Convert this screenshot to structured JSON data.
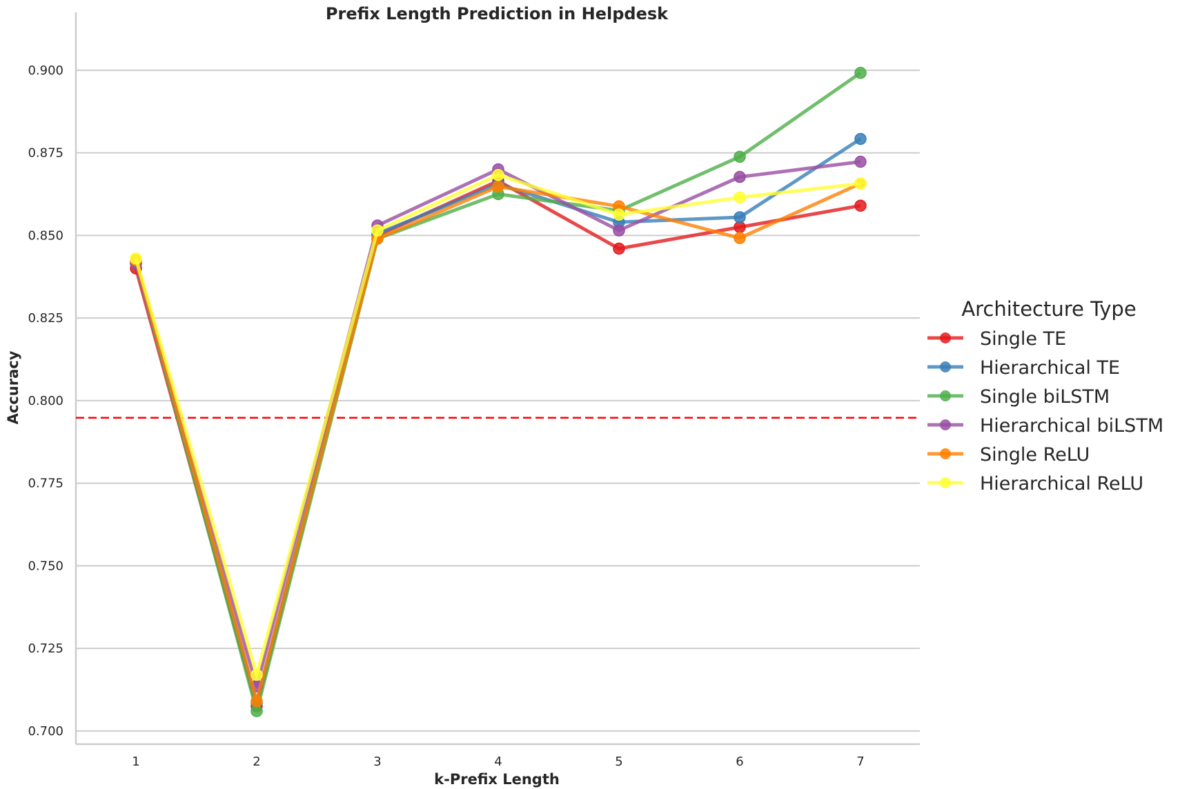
{
  "chart_data": {
    "type": "line",
    "title": "Prefix Length Prediction in Helpdesk",
    "xlabel": "k-Prefix Length",
    "ylabel": "Accuracy",
    "x": [
      1,
      2,
      3,
      4,
      5,
      6,
      7
    ],
    "x_tick_labels": [
      "1",
      "2",
      "3",
      "4",
      "5",
      "6",
      "7"
    ],
    "ylim": [
      0.696,
      0.9175
    ],
    "y_ticks": [
      0.7,
      0.725,
      0.75,
      0.775,
      0.8,
      0.825,
      0.85,
      0.875,
      0.9
    ],
    "y_tick_labels": [
      "0.700",
      "0.725",
      "0.750",
      "0.775",
      "0.800",
      "0.825",
      "0.850",
      "0.875",
      "0.900"
    ],
    "grid": "horizontal",
    "reference_line": {
      "y": 0.7948,
      "color": "#ff0000",
      "style": "dashed"
    },
    "legend": {
      "title": "Architecture Type",
      "placement": "right"
    },
    "series": [
      {
        "name": "Single TE",
        "color": "#e41a1c",
        "values": [
          0.84,
          0.7075,
          0.85,
          0.8665,
          0.846,
          0.8525,
          0.859
        ]
      },
      {
        "name": "Hierarchical TE",
        "color": "#377eb8",
        "values": [
          0.8415,
          0.7085,
          0.8505,
          0.8655,
          0.854,
          0.8555,
          0.8792
        ]
      },
      {
        "name": "Single biLSTM",
        "color": "#4daf4a",
        "values": [
          0.842,
          0.706,
          0.849,
          0.8625,
          0.8575,
          0.8738,
          0.8992
        ]
      },
      {
        "name": "Hierarchical biLSTM",
        "color": "#984ea3",
        "values": [
          0.8415,
          0.7135,
          0.853,
          0.87,
          0.8515,
          0.8677,
          0.8723
        ]
      },
      {
        "name": "Single ReLU",
        "color": "#ff7f00",
        "values": [
          0.8425,
          0.709,
          0.849,
          0.8648,
          0.8588,
          0.8492,
          0.8657
        ]
      },
      {
        "name": "Hierarchical ReLU",
        "color": "#ffff33",
        "values": [
          0.843,
          0.717,
          0.8515,
          0.8683,
          0.8563,
          0.8615,
          0.8657
        ]
      }
    ]
  }
}
